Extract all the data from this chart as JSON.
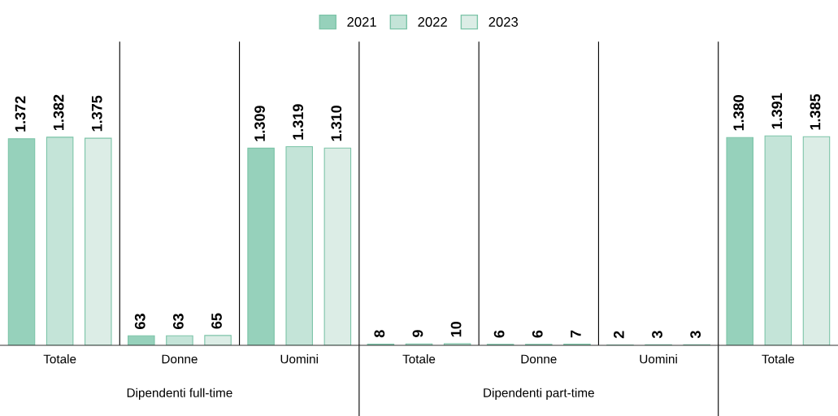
{
  "chart_data": {
    "type": "bar",
    "categories": [
      "Totale",
      "Donne",
      "Uomini",
      "Totale",
      "Donne",
      "Uomini",
      "Totale"
    ],
    "series": [
      {
        "name": "2021",
        "color": "#96d1bb",
        "values": [
          1372,
          63,
          1309,
          8,
          6,
          2,
          1380
        ],
        "value_labels": [
          "1.372",
          "63",
          "1.309",
          "8",
          "6",
          "2",
          "1.380"
        ]
      },
      {
        "name": "2022",
        "color": "#c4e4d8",
        "values": [
          1382,
          63,
          1319,
          9,
          6,
          3,
          1391
        ],
        "value_labels": [
          "1.382",
          "63",
          "1.319",
          "9",
          "6",
          "3",
          "1.391"
        ]
      },
      {
        "name": "2023",
        "color": "#dcede6",
        "values": [
          1375,
          65,
          1310,
          10,
          7,
          3,
          1385
        ],
        "value_labels": [
          "1.375",
          "65",
          "1.310",
          "10",
          "7",
          "3",
          "1.385"
        ]
      }
    ],
    "annotations": [
      "Dipendenti full-time",
      "Dipendenti part-time"
    ],
    "legend": "top",
    "grid": false,
    "tick_labels": "x"
  }
}
